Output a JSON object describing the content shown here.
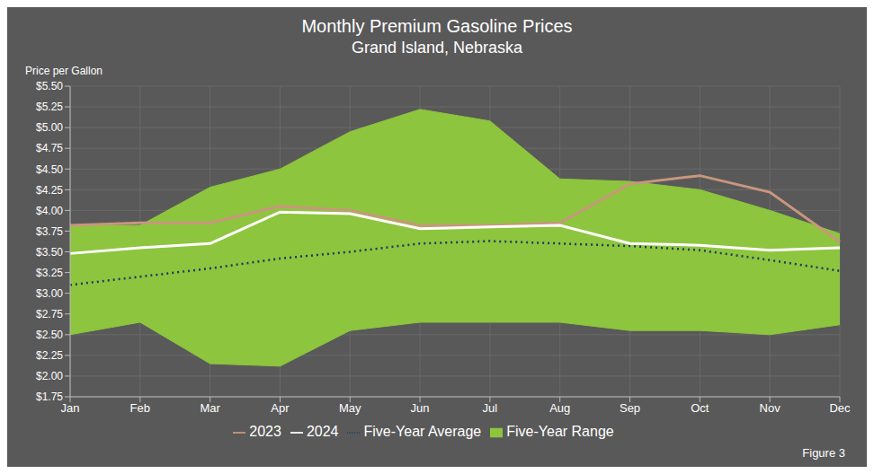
{
  "chart_data": {
    "type": "line",
    "title": "Monthly Premium Gasoline Prices",
    "subtitle": "Grand Island, Nebraska",
    "y_label": "Price per Gallon",
    "annotations": [
      "Figure 3"
    ],
    "categories": [
      "Jan",
      "Feb",
      "Mar",
      "Apr",
      "May",
      "Jun",
      "Jul",
      "Aug",
      "Sep",
      "Oct",
      "Nov",
      "Dec"
    ],
    "series": [
      {
        "name": "Five-Year Range",
        "type": "area",
        "color": "#8DC53E",
        "values": [
          [
            2.5,
            3.82
          ],
          [
            2.65,
            3.82
          ],
          [
            2.15,
            4.28
          ],
          [
            2.12,
            4.5
          ],
          [
            2.55,
            4.95
          ],
          [
            2.65,
            5.22
          ],
          [
            2.65,
            5.08
          ],
          [
            2.65,
            4.38
          ],
          [
            2.55,
            4.35
          ],
          [
            2.55,
            4.25
          ],
          [
            2.5,
            4.0
          ],
          [
            2.62,
            3.72
          ]
        ]
      },
      {
        "name": "Five-Year Average",
        "type": "line",
        "line_style": "dotted",
        "color": "#1e3a5f",
        "values": [
          3.1,
          3.2,
          3.3,
          3.42,
          3.5,
          3.6,
          3.63,
          3.6,
          3.57,
          3.52,
          3.4,
          3.27
        ]
      },
      {
        "name": "2023",
        "type": "line",
        "line_style": "solid",
        "color": "#c9967e",
        "values": [
          3.82,
          3.85,
          3.85,
          4.05,
          4.0,
          3.82,
          3.82,
          3.85,
          4.32,
          4.42,
          4.22,
          3.62
        ]
      },
      {
        "name": "2024",
        "type": "line",
        "line_style": "solid",
        "color": "#ffffff",
        "values": [
          3.48,
          3.55,
          3.6,
          3.98,
          3.96,
          3.78,
          3.8,
          3.82,
          3.6,
          3.58,
          3.52,
          3.55
        ]
      }
    ],
    "ylim": [
      1.75,
      5.5
    ],
    "yticks": [
      {
        "value": 1.75,
        "label": "$1.75"
      },
      {
        "value": 2.0,
        "label": "$2.00"
      },
      {
        "value": 2.25,
        "label": "$2.25"
      },
      {
        "value": 2.5,
        "label": "$2.50"
      },
      {
        "value": 2.75,
        "label": "$2.75"
      },
      {
        "value": 3.0,
        "label": "$3.00"
      },
      {
        "value": 3.25,
        "label": "$3.25"
      },
      {
        "value": 3.5,
        "label": "$3.50"
      },
      {
        "value": 3.75,
        "label": "$3.75"
      },
      {
        "value": 4.0,
        "label": "$4.00"
      },
      {
        "value": 4.25,
        "label": "$4.25"
      },
      {
        "value": 4.5,
        "label": "$4.50"
      },
      {
        "value": 4.75,
        "label": "$4.75"
      },
      {
        "value": 5.0,
        "label": "$5.00"
      },
      {
        "value": 5.25,
        "label": "$5.25"
      },
      {
        "value": 5.5,
        "label": "$5.50"
      }
    ],
    "grid": true,
    "legend": "bottom"
  }
}
